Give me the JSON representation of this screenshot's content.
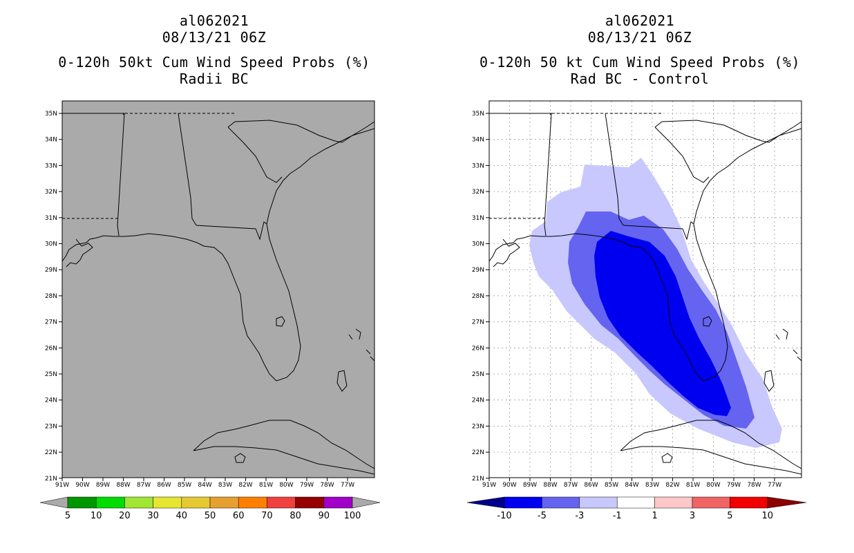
{
  "left": {
    "titles": [
      "al062021",
      "08/13/21 06Z",
      "0-120h 50kt Cum Wind Speed Probs (%)",
      "Radii BC"
    ],
    "lat_labels": [
      "35N",
      "34N",
      "33N",
      "32N",
      "31N",
      "30N",
      "29N",
      "28N",
      "27N",
      "26N",
      "25N",
      "24N",
      "23N",
      "22N",
      "21N"
    ],
    "lon_labels": [
      "91W",
      "90W",
      "89W",
      "88W",
      "87W",
      "86W",
      "85W",
      "84W",
      "83W",
      "82W",
      "81W",
      "80W",
      "79W",
      "78W",
      "77W"
    ],
    "colorbar": {
      "labels": [
        "5",
        "10",
        "20",
        "30",
        "40",
        "50",
        "60",
        "70",
        "80",
        "90",
        "100"
      ],
      "colors": [
        "#009600",
        "#00dc00",
        "#a0e632",
        "#e6e632",
        "#e6c832",
        "#e6a032",
        "#ff8000",
        "#f04040",
        "#960000",
        "#a000c8"
      ],
      "end_color": "#aaaaaa"
    },
    "map_fill": "#aaaaaa"
  },
  "right": {
    "titles": [
      "al062021",
      "08/13/21 06Z",
      "0-120h 50 kt Cum Wind Speed Probs (%)",
      "Rad BC - Control"
    ],
    "lat_labels": [
      "35N",
      "34N",
      "33N",
      "32N",
      "31N",
      "30N",
      "29N",
      "28N",
      "27N",
      "26N",
      "25N",
      "24N",
      "23N",
      "22N",
      "21N"
    ],
    "lon_labels": [
      "91W",
      "90W",
      "89W",
      "88W",
      "87W",
      "86W",
      "85W",
      "84W",
      "83W",
      "82W",
      "81W",
      "80W",
      "79W",
      "78W",
      "77W"
    ],
    "colorbar": {
      "labels": [
        "-10",
        "-5",
        "-3",
        "-1",
        "1",
        "3",
        "5",
        "10"
      ],
      "colors": [
        "#00008c",
        "#0000f0",
        "#6464f0",
        "#c8c8ff",
        "#ffffff",
        "#ffc8c8",
        "#f06464",
        "#f00000",
        "#8c0000"
      ]
    },
    "contour_colors": [
      "#c8c8ff",
      "#6464f0",
      "#0000f0"
    ]
  }
}
